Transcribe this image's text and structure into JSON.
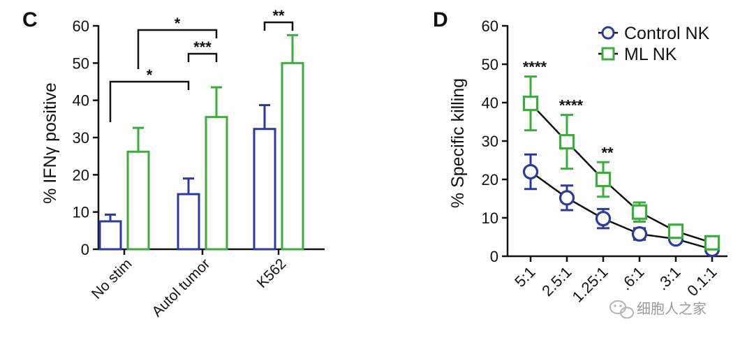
{
  "colors": {
    "control": "#2b3aa0",
    "ml": "#3aae3a",
    "axis": "#111111",
    "watermark": "#9a9a9a"
  },
  "watermark": {
    "text": "细胞人之家",
    "icon": "wechat-icon"
  },
  "chart_data": [
    {
      "panel": "C",
      "type": "bar",
      "ylabel": "% IFNγ positive",
      "ylim": [
        0,
        60
      ],
      "yticks": [
        0,
        10,
        20,
        30,
        40,
        50,
        60
      ],
      "categories": [
        "No stim",
        "Autol tumor",
        "K562"
      ],
      "series": [
        {
          "key": "control",
          "values": [
            7.5,
            14.8,
            32.3
          ],
          "errors": [
            1.8,
            4.2,
            6.4
          ]
        },
        {
          "key": "ml",
          "values": [
            26.2,
            35.5,
            50.0
          ],
          "errors": [
            6.4,
            8.0,
            7.5
          ]
        }
      ],
      "significance": [
        {
          "label": "*",
          "from": "No stim Control",
          "to": "Autol tumor Control"
        },
        {
          "label": "*",
          "from": "No stim ML",
          "to": "Autol tumor ML"
        },
        {
          "label": "***",
          "from": "Autol tumor Control",
          "to": "Autol tumor ML"
        },
        {
          "label": "**",
          "from": "K562 Control",
          "to": "K562 ML"
        }
      ]
    },
    {
      "panel": "D",
      "type": "line",
      "ylabel": "% Specific killing",
      "ylim": [
        0,
        60
      ],
      "yticks": [
        0,
        10,
        20,
        30,
        40,
        50,
        60
      ],
      "x": [
        "5:1",
        "2.5:1",
        "1.25:1",
        "0.6:1",
        "0.3:1",
        "0.1:1"
      ],
      "x_tick_labels": [
        "5:1",
        "2.5:1",
        "1.25:1",
        ".6:1",
        ".3:1",
        "0.1:1"
      ],
      "legend_position": "top-right",
      "series": [
        {
          "key": "control",
          "name": "Control NK",
          "marker": "circle",
          "values": [
            22.0,
            15.2,
            9.8,
            5.8,
            4.5,
            1.8
          ],
          "errors": [
            4.5,
            3.2,
            2.5,
            1.5,
            1.0,
            0.8
          ]
        },
        {
          "key": "ml",
          "name": "ML NK",
          "marker": "square",
          "values": [
            39.8,
            29.8,
            20.0,
            11.5,
            6.5,
            3.5
          ],
          "errors": [
            7.0,
            7.0,
            4.5,
            2.5,
            1.5,
            1.0
          ]
        }
      ],
      "significance": [
        {
          "label": "****",
          "x": "5:1"
        },
        {
          "label": "****",
          "x": "2.5:1"
        },
        {
          "label": "**",
          "x": "1.25:1"
        }
      ]
    }
  ]
}
